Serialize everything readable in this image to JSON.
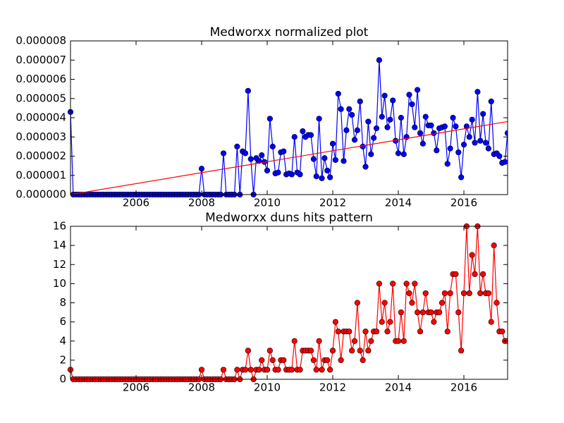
{
  "chart_data": [
    {
      "type": "line",
      "title": "Medworxx normalized plot",
      "xlim": [
        2004,
        2017.333
      ],
      "xticks": [
        2006,
        2008,
        2010,
        2012,
        2014,
        2016
      ],
      "ylim": [
        0,
        8e-06
      ],
      "yticks": [
        {
          "value": 0,
          "label": "0.000000"
        },
        {
          "value": 1e-06,
          "label": "0.000001"
        },
        {
          "value": 2e-06,
          "label": "0.000002"
        },
        {
          "value": 3e-06,
          "label": "0.000003"
        },
        {
          "value": 4e-06,
          "label": "0.000004"
        },
        {
          "value": 5e-06,
          "label": "0.000005"
        },
        {
          "value": 6e-06,
          "label": "0.000006"
        },
        {
          "value": 7e-06,
          "label": "0.000007"
        },
        {
          "value": 8e-06,
          "label": "0.000008"
        }
      ],
      "x": [
        2004,
        2004.083,
        2004.167,
        2004.25,
        2004.333,
        2004.417,
        2004.5,
        2004.583,
        2004.667,
        2004.75,
        2004.833,
        2004.917,
        2005,
        2005.083,
        2005.167,
        2005.25,
        2005.333,
        2005.417,
        2005.5,
        2005.583,
        2005.667,
        2005.75,
        2005.833,
        2005.917,
        2006,
        2006.083,
        2006.167,
        2006.25,
        2006.333,
        2006.417,
        2006.5,
        2006.583,
        2006.667,
        2006.75,
        2006.833,
        2006.917,
        2007,
        2007.083,
        2007.167,
        2007.25,
        2007.333,
        2007.417,
        2007.5,
        2007.583,
        2007.667,
        2007.75,
        2007.833,
        2007.917,
        2008,
        2008.083,
        2008.167,
        2008.25,
        2008.333,
        2008.417,
        2008.5,
        2008.583,
        2008.667,
        2008.75,
        2008.833,
        2008.917,
        2009,
        2009.083,
        2009.167,
        2009.25,
        2009.333,
        2009.417,
        2009.5,
        2009.583,
        2009.667,
        2009.75,
        2009.833,
        2009.917,
        2010,
        2010.083,
        2010.167,
        2010.25,
        2010.333,
        2010.417,
        2010.5,
        2010.583,
        2010.667,
        2010.75,
        2010.833,
        2010.917,
        2011,
        2011.083,
        2011.167,
        2011.25,
        2011.333,
        2011.417,
        2011.5,
        2011.583,
        2011.667,
        2011.75,
        2011.833,
        2011.917,
        2012,
        2012.083,
        2012.167,
        2012.25,
        2012.333,
        2012.417,
        2012.5,
        2012.583,
        2012.667,
        2012.75,
        2012.833,
        2012.917,
        2013,
        2013.083,
        2013.167,
        2013.25,
        2013.333,
        2013.417,
        2013.5,
        2013.583,
        2013.667,
        2013.75,
        2013.833,
        2013.917,
        2014,
        2014.083,
        2014.167,
        2014.25,
        2014.333,
        2014.417,
        2014.5,
        2014.583,
        2014.667,
        2014.75,
        2014.833,
        2014.917,
        2015,
        2015.083,
        2015.167,
        2015.25,
        2015.333,
        2015.417,
        2015.5,
        2015.583,
        2015.667,
        2015.75,
        2015.833,
        2015.917,
        2016,
        2016.083,
        2016.167,
        2016.25,
        2016.333,
        2016.417,
        2016.5,
        2016.583,
        2016.667,
        2016.75,
        2016.833,
        2016.917,
        2017,
        2017.083,
        2017.167,
        2017.25,
        2017.333
      ],
      "series": [
        {
          "color": "#0000ff",
          "markers": true,
          "values": [
            4.3e-06,
            0,
            0,
            0,
            0,
            0,
            0,
            0,
            0,
            0,
            0,
            0,
            0,
            0,
            0,
            0,
            0,
            0,
            0,
            0,
            0,
            0,
            0,
            0,
            0,
            0,
            0,
            0,
            0,
            0,
            0,
            0,
            0,
            0,
            0,
            0,
            0,
            0,
            0,
            0,
            0,
            0,
            0,
            0,
            0,
            0,
            0,
            0,
            1.35e-06,
            0,
            0,
            0,
            0,
            0,
            0,
            0,
            2.15e-06,
            0,
            0,
            0,
            0,
            2.5e-06,
            0,
            2.25e-06,
            2.15e-06,
            5.4e-06,
            1.85e-06,
            0,
            1.9e-06,
            1.75e-06,
            2.05e-06,
            1.7e-06,
            1.25e-06,
            3.95e-06,
            2.5e-06,
            1.1e-06,
            1.15e-06,
            2.2e-06,
            2.25e-06,
            1.05e-06,
            1.1e-06,
            1.05e-06,
            3e-06,
            1.15e-06,
            1.05e-06,
            3.3e-06,
            3e-06,
            3.1e-06,
            3.1e-06,
            1.85e-06,
            9.5e-07,
            3.95e-06,
            8.5e-07,
            1.9e-06,
            1.25e-06,
            9e-07,
            2.65e-06,
            1.8e-06,
            5.25e-06,
            4.45e-06,
            1.75e-06,
            3.35e-06,
            4.45e-06,
            4.15e-06,
            2.85e-06,
            3.35e-06,
            4.85e-06,
            2.5e-06,
            1.45e-06,
            3.8e-06,
            2.1e-06,
            2.95e-06,
            3.45e-06,
            7e-06,
            4.05e-06,
            5.15e-06,
            3.5e-06,
            3.9e-06,
            4.9e-06,
            2.8e-06,
            2.15e-06,
            4e-06,
            2.1e-06,
            3e-06,
            5.2e-06,
            4.7e-06,
            3.5e-06,
            5.45e-06,
            3.2e-06,
            2.65e-06,
            4.05e-06,
            3.6e-06,
            3.6e-06,
            3.2e-06,
            2.3e-06,
            3.45e-06,
            3.5e-06,
            3.55e-06,
            1.6e-06,
            2.4e-06,
            4e-06,
            3.55e-06,
            2.2e-06,
            9e-07,
            2.6e-06,
            3.55e-06,
            3e-06,
            3.9e-06,
            2.7e-06,
            5.35e-06,
            2.8e-06,
            4.2e-06,
            2.7e-06,
            2.4e-06,
            4.85e-06,
            2.1e-06,
            2.15e-06,
            2e-06,
            1.65e-06,
            1.7e-06,
            3.2e-06
          ]
        },
        {
          "color": "#ff0000",
          "markers": false,
          "x": [
            2004,
            2017.333
          ],
          "values": [
            0,
            3.8e-06
          ]
        }
      ]
    },
    {
      "type": "line",
      "title": "Medworxx duns hits pattern",
      "xlim": [
        2004,
        2017.333
      ],
      "xticks": [
        2006,
        2008,
        2010,
        2012,
        2014,
        2016
      ],
      "ylim": [
        0,
        16
      ],
      "yticks": [
        0,
        2,
        4,
        6,
        8,
        10,
        12,
        14,
        16
      ],
      "x": [
        2004,
        2004.083,
        2004.167,
        2004.25,
        2004.333,
        2004.417,
        2004.5,
        2004.583,
        2004.667,
        2004.75,
        2004.833,
        2004.917,
        2005,
        2005.083,
        2005.167,
        2005.25,
        2005.333,
        2005.417,
        2005.5,
        2005.583,
        2005.667,
        2005.75,
        2005.833,
        2005.917,
        2006,
        2006.083,
        2006.167,
        2006.25,
        2006.333,
        2006.417,
        2006.5,
        2006.583,
        2006.667,
        2006.75,
        2006.833,
        2006.917,
        2007,
        2007.083,
        2007.167,
        2007.25,
        2007.333,
        2007.417,
        2007.5,
        2007.583,
        2007.667,
        2007.75,
        2007.833,
        2007.917,
        2008,
        2008.083,
        2008.167,
        2008.25,
        2008.333,
        2008.417,
        2008.5,
        2008.583,
        2008.667,
        2008.75,
        2008.833,
        2008.917,
        2009,
        2009.083,
        2009.167,
        2009.25,
        2009.333,
        2009.417,
        2009.5,
        2009.583,
        2009.667,
        2009.75,
        2009.833,
        2009.917,
        2010,
        2010.083,
        2010.167,
        2010.25,
        2010.333,
        2010.417,
        2010.5,
        2010.583,
        2010.667,
        2010.75,
        2010.833,
        2010.917,
        2011,
        2011.083,
        2011.167,
        2011.25,
        2011.333,
        2011.417,
        2011.5,
        2011.583,
        2011.667,
        2011.75,
        2011.833,
        2011.917,
        2012,
        2012.083,
        2012.167,
        2012.25,
        2012.333,
        2012.417,
        2012.5,
        2012.583,
        2012.667,
        2012.75,
        2012.833,
        2012.917,
        2013,
        2013.083,
        2013.167,
        2013.25,
        2013.333,
        2013.417,
        2013.5,
        2013.583,
        2013.667,
        2013.75,
        2013.833,
        2013.917,
        2014,
        2014.083,
        2014.167,
        2014.25,
        2014.333,
        2014.417,
        2014.5,
        2014.583,
        2014.667,
        2014.75,
        2014.833,
        2014.917,
        2015,
        2015.083,
        2015.167,
        2015.25,
        2015.333,
        2015.417,
        2015.5,
        2015.583,
        2015.667,
        2015.75,
        2015.833,
        2015.917,
        2016,
        2016.083,
        2016.167,
        2016.25,
        2016.333,
        2016.417,
        2016.5,
        2016.583,
        2016.667,
        2016.75,
        2016.833,
        2016.917,
        2017,
        2017.083,
        2017.167,
        2017.25,
        2017.333
      ],
      "series": [
        {
          "color": "#ff0000",
          "markers": true,
          "values": [
            1,
            0,
            0,
            0,
            0,
            0,
            0,
            0,
            0,
            0,
            0,
            0,
            0,
            0,
            0,
            0,
            0,
            0,
            0,
            0,
            0,
            0,
            0,
            0,
            0,
            0,
            0,
            0,
            0,
            0,
            0,
            0,
            0,
            0,
            0,
            0,
            0,
            0,
            0,
            0,
            0,
            0,
            0,
            0,
            0,
            0,
            0,
            0,
            1,
            0,
            0,
            0,
            0,
            0,
            0,
            0,
            1,
            0,
            0,
            0,
            0,
            1,
            0,
            1,
            1,
            3,
            1,
            0,
            1,
            1,
            2,
            1,
            1,
            3,
            2,
            1,
            1,
            2,
            2,
            1,
            1,
            1,
            4,
            1,
            1,
            3,
            3,
            3,
            3,
            2,
            1,
            4,
            1,
            2,
            2,
            1,
            3,
            6,
            5,
            2,
            5,
            5,
            5,
            3,
            4,
            8,
            3,
            2,
            5,
            3,
            4,
            5,
            5,
            10,
            6,
            8,
            5,
            6,
            10,
            4,
            4,
            7,
            4,
            10,
            9,
            8,
            10,
            7,
            5,
            7,
            9,
            7,
            7,
            6,
            7,
            7,
            8,
            9,
            5,
            9,
            11,
            11,
            7,
            3,
            9,
            16,
            9,
            13,
            11,
            16,
            9,
            11,
            9,
            9,
            6,
            14,
            8,
            5,
            5,
            4,
            4
          ]
        }
      ]
    }
  ]
}
